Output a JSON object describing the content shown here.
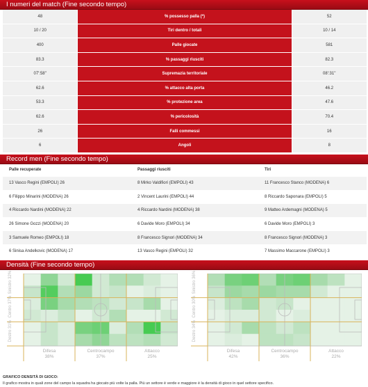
{
  "sections": {
    "match": "I numeri del match (Fine secondo tempo)",
    "record": "Record men (Fine secondo tempo)",
    "density": "Densità (Fine secondo tempo)"
  },
  "match_stats": [
    {
      "home": "48",
      "label": "% possesso palla (*)",
      "away": "52"
    },
    {
      "home": "10 / 20",
      "label": "Tiri dentro / totali",
      "away": "10 / 14"
    },
    {
      "home": "400",
      "label": "Palle giocate",
      "away": "581"
    },
    {
      "home": "83.3",
      "label": "% passaggi riusciti",
      "away": "82.3"
    },
    {
      "home": "07':58''",
      "label": "Supremazia territoriale",
      "away": "08':31''"
    },
    {
      "home": "62.6",
      "label": "% attacco alta porta",
      "away": "46.2"
    },
    {
      "home": "53.3",
      "label": "% protezione area",
      "away": "47.6"
    },
    {
      "home": "62.6",
      "label": "% pericolosità",
      "away": "70.4"
    },
    {
      "home": "26",
      "label": "Falli commessi",
      "away": "16"
    },
    {
      "home": "6",
      "label": "Angoli",
      "away": "8"
    }
  ],
  "record": {
    "headers": [
      "Palle recuperate",
      "Passaggi riusciti",
      "Tiri"
    ],
    "rows": [
      [
        "13 Vasco Regini (EMPOLI) 26",
        "8 Mirko Valdifiori (EMPOLI) 43",
        "11 Francesco Stanco (MODENA) 6"
      ],
      [
        "6 Filippo Minarini (MODENA) 26",
        "2 Vincent Laurini (EMPOLI) 44",
        "8 Riccardo Saponara (EMPOLI) 5"
      ],
      [
        "4 Riccardo Nardini (MODENA) 22",
        "4 Riccardo Nardini (MODENA) 38",
        "9 Matteo Ardemagni (MODENA) 5"
      ],
      [
        "26 Simone Gozzi (MODENA) 20",
        "6 Davide Moro (EMPOLI) 34",
        "6 Davide Moro (EMPOLI) 3"
      ],
      [
        "3 Samuele Romeo (EMPOLI) 18",
        "8 Francesco Signori (MODENA) 34",
        "8 Francesco Signori (MODENA) 3"
      ],
      [
        "6 Sinisa Andelkovic (MODENA) 17",
        "13 Vasco Regini (EMPOLI) 32",
        "7 Massimo Maccarone (EMPOLI) 3"
      ]
    ]
  },
  "density": {
    "pitches": [
      {
        "rows": [
          "Sinistro 32%",
          "Centro 37%",
          "Destro 31%"
        ],
        "cols": [
          {
            "name": "Difesa",
            "pct": "38%"
          },
          {
            "name": "Centrocampo",
            "pct": "37%"
          },
          {
            "name": "Attacco",
            "pct": "25%"
          }
        ],
        "grid": [
          [
            0.05,
            0.45,
            0.15,
            0.75,
            0.15,
            0.3,
            0.3,
            0.15,
            0.05
          ],
          [
            0.2,
            0.7,
            0.3,
            0.4,
            0.15,
            0.2,
            0.05,
            0.1,
            0.05
          ],
          [
            0.1,
            0.55,
            0.35,
            0.3,
            0.25,
            0.15,
            0.2,
            0.35,
            0.05
          ],
          [
            0.15,
            0.1,
            0.2,
            0.05,
            0.15,
            0.3,
            0.05,
            0.05,
            0.15
          ],
          [
            0.05,
            0.2,
            0.1,
            0.55,
            0.6,
            0.1,
            0.3,
            0.75,
            0.2
          ],
          [
            0.05,
            0.2,
            0.1,
            0.35,
            0.45,
            0.25,
            0.25,
            0.3,
            0.15
          ]
        ]
      },
      {
        "rows": [
          "Sinistro 36%",
          "Centro 30%",
          "Destro 34%"
        ],
        "cols": [
          {
            "name": "Difesa",
            "pct": "42%"
          },
          {
            "name": "Centrocampo",
            "pct": "36%"
          },
          {
            "name": "Attacco",
            "pct": "22%"
          }
        ],
        "grid": [
          [
            0.3,
            0.55,
            0.6,
            0.3,
            0.55,
            0.6,
            0.35,
            0.25,
            0.05
          ],
          [
            0.2,
            0.4,
            0.35,
            0.4,
            0.35,
            0.35,
            0.15,
            0.05,
            0.05
          ],
          [
            0.1,
            0.25,
            0.35,
            0.15,
            0.2,
            0.05,
            0.05,
            0.05,
            0.05
          ],
          [
            0.05,
            0.1,
            0.1,
            0.15,
            0.05,
            0.1,
            0.05,
            0.05,
            0.05
          ],
          [
            0.05,
            0.15,
            0.35,
            0.25,
            0.15,
            0.25,
            0.05,
            0.05,
            0.05
          ],
          [
            0.05,
            0.1,
            0.05,
            0.25,
            0.25,
            0.2,
            0.05,
            0.05,
            0.05
          ]
        ]
      }
    ]
  },
  "note": {
    "title": "GRAFICO DENSITÀ DI GIOCO:",
    "text": "Il grafico mostra in quali zone del campo la squadra ha giocato più volte la palla. Più un settore è verde e maggiore è la densità di gioco in quel settore specifico."
  }
}
